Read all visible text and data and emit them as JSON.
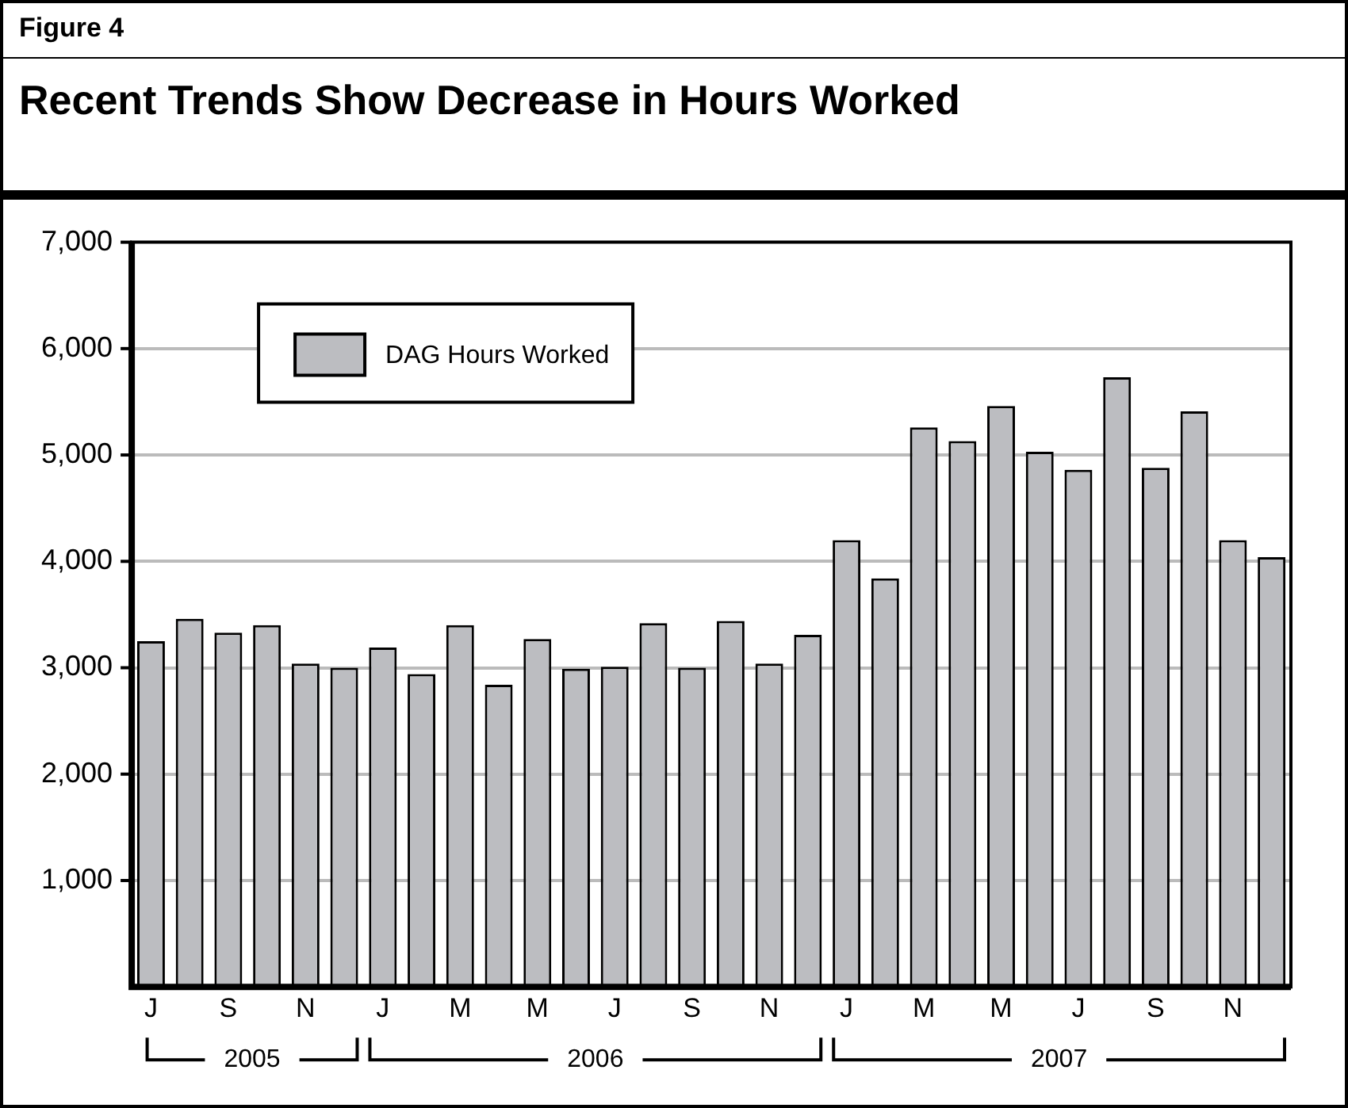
{
  "chart_data": {
    "type": "bar",
    "subtitle": "Figure 4",
    "title": "Recent Trends Show Decrease in Hours Worked",
    "categories": [
      "J",
      null,
      "S",
      null,
      "N",
      null,
      "J",
      null,
      "M",
      null,
      "M",
      null,
      "J",
      null,
      "S",
      null,
      "N",
      null,
      "J",
      null,
      "M",
      null,
      "M",
      null,
      "J",
      null,
      "S",
      null,
      "N",
      null
    ],
    "series": [
      {
        "name": "DAG Hours Worked",
        "color": "#bcbdc1",
        "values": [
          3250,
          3460,
          3330,
          3400,
          3040,
          3000,
          3190,
          2940,
          3400,
          2840,
          3270,
          2990,
          3010,
          3420,
          3000,
          3440,
          3040,
          3310,
          4200,
          3840,
          5260,
          5130,
          5460,
          5030,
          4860,
          5730,
          4880,
          5410,
          4200,
          4040
        ]
      }
    ],
    "ylim": [
      0,
      7000
    ],
    "yticks": [
      {
        "value": 1000,
        "label": "1,000"
      },
      {
        "value": 2000,
        "label": "2,000"
      },
      {
        "value": 3000,
        "label": "3,000"
      },
      {
        "value": 4000,
        "label": "4,000"
      },
      {
        "value": 5000,
        "label": "5,000"
      },
      {
        "value": 6000,
        "label": "6,000"
      },
      {
        "value": 7000,
        "label": "7,000"
      }
    ],
    "grid": "y",
    "legend": "top left",
    "annotations": [
      "2005",
      "2006",
      "2007"
    ]
  }
}
